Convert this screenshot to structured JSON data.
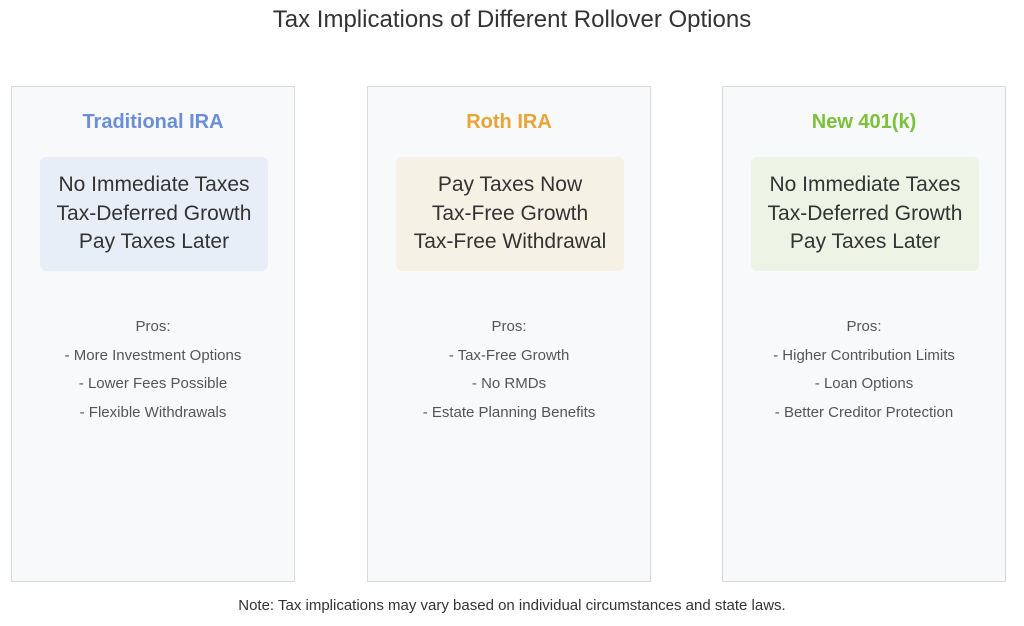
{
  "title": "Tax Implications of Different Rollover Options",
  "options": [
    {
      "name": "Traditional IRA",
      "color": "#6a8fd8",
      "box_color": "#e8eef8",
      "tax": [
        "No Immediate Taxes",
        "Tax-Deferred Growth",
        "Pay Taxes Later"
      ],
      "pros_heading": "Pros:",
      "pros": [
        "- More Investment Options",
        "- Lower Fees Possible",
        "- Flexible Withdrawals"
      ]
    },
    {
      "name": "Roth IRA",
      "color": "#e8a437",
      "box_color": "#f6f1e5",
      "tax": [
        "Pay Taxes Now",
        "Tax-Free Growth",
        "Tax-Free Withdrawal"
      ],
      "pros_heading": "Pros:",
      "pros": [
        "- Tax-Free Growth",
        "- No RMDs",
        "- Estate Planning Benefits"
      ]
    },
    {
      "name": "New 401(k)",
      "color": "#7cc13a",
      "box_color": "#edf4e5",
      "tax": [
        "No Immediate Taxes",
        "Tax-Deferred Growth",
        "Pay Taxes Later"
      ],
      "pros_heading": "Pros:",
      "pros": [
        "- Higher Contribution Limits",
        "- Loan Options",
        "- Better Creditor Protection"
      ]
    }
  ],
  "note": "Note: Tax implications may vary based on individual circumstances and state laws."
}
